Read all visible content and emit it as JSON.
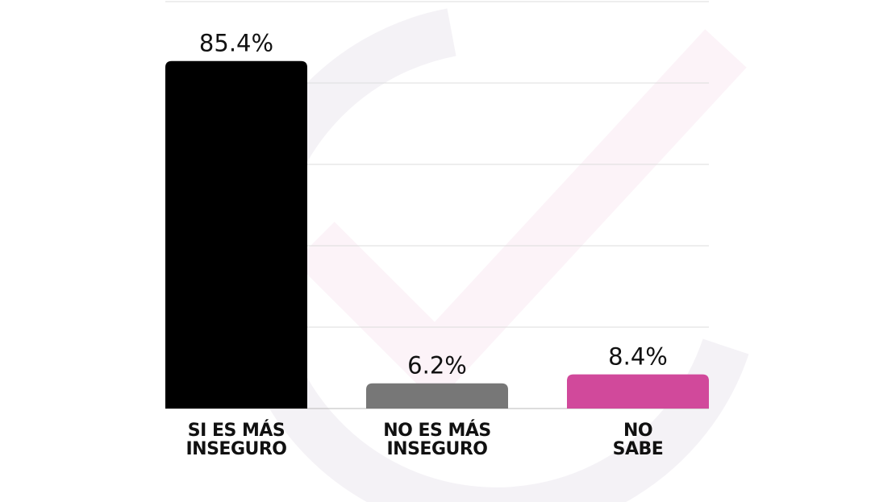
{
  "chart_data": {
    "type": "bar",
    "categories": [
      "SI ES MÁS\nINSEGURO",
      "NO ES MÁS\nINSEGURO",
      "NO\nSABE"
    ],
    "values": [
      85.4,
      6.2,
      8.4
    ],
    "value_labels": [
      "85.4%",
      "6.2%",
      "8.4%"
    ],
    "colors": [
      "#000000",
      "#777777",
      "#d1499b"
    ],
    "ylim": [
      0,
      100
    ],
    "yticks": [
      0,
      20,
      40,
      60,
      80,
      100
    ],
    "grid": true
  }
}
